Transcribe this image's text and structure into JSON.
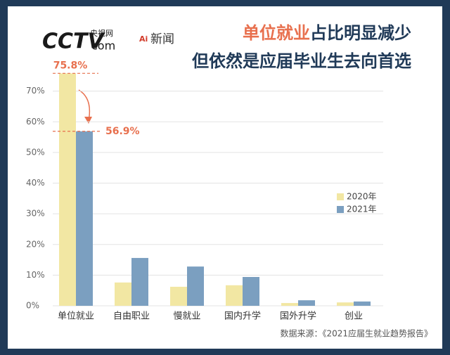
{
  "logo": {
    "brand": "CCTV",
    "domain": "com",
    "site": "央视网",
    "news": "新闻"
  },
  "chart_data": {
    "type": "bar",
    "title_highlight": "单位就业",
    "title_rest": "占比明显减少",
    "subtitle": "但依然是应届毕业生去向首选",
    "categories": [
      "单位就业",
      "自由职业",
      "慢就业",
      "国内升学",
      "国外升学",
      "创业"
    ],
    "series": [
      {
        "name": "2020年",
        "color": "#f2e7a3",
        "values": [
          75.8,
          7.6,
          6.2,
          6.7,
          0.9,
          1.1
        ],
        "value_labels": [
          "75.8%",
          null,
          null,
          null,
          null,
          null
        ]
      },
      {
        "name": "2021年",
        "color": "#7b9fc0",
        "values": [
          56.9,
          15.6,
          12.8,
          9.4,
          1.8,
          1.4
        ],
        "value_labels": [
          "56.9%",
          null,
          null,
          null,
          null,
          null
        ]
      }
    ],
    "ylim": [
      0,
      80
    ],
    "yticks": [
      {
        "value": 0,
        "label": "0%"
      },
      {
        "value": 10,
        "label": "10%"
      },
      {
        "value": 20,
        "label": "20%"
      },
      {
        "value": 30,
        "label": "30%"
      },
      {
        "value": 40,
        "label": "40%"
      },
      {
        "value": 50,
        "label": "50%"
      },
      {
        "value": 60,
        "label": "60%"
      },
      {
        "value": 70,
        "label": "70%"
      }
    ],
    "grid": true,
    "legend": "right",
    "source": "数据来源：《2021应届生就业趋势报告》"
  }
}
